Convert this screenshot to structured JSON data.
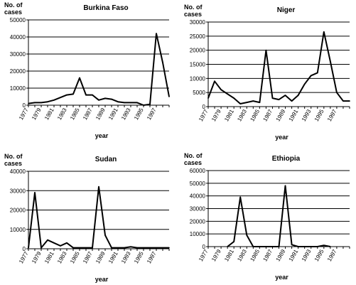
{
  "chart_data": [
    {
      "type": "line",
      "title": "Burkina Faso",
      "ylabel": "No. of cases",
      "xlabel": "year",
      "ylim": [
        0,
        50000
      ],
      "yticks": [
        0,
        10000,
        20000,
        30000,
        40000,
        50000
      ],
      "ytick_labels": [
        "0",
        "10000",
        "20000",
        "30000",
        "40000",
        "50000"
      ],
      "xlim": [
        1977,
        1999
      ],
      "xtick_labels": [
        "1977",
        "1979",
        "1981",
        "1983",
        "1985",
        "1987",
        "1989",
        "1991",
        "1993",
        "1995",
        "1997"
      ],
      "x": [
        1977,
        1978,
        1979,
        1980,
        1981,
        1982,
        1983,
        1984,
        1985,
        1986,
        1987,
        1988,
        1989,
        1990,
        1991,
        1992,
        1993,
        1994,
        1995,
        1996,
        1997,
        1998,
        1999
      ],
      "values": [
        1000,
        1500,
        1500,
        2000,
        3000,
        4500,
        6000,
        6500,
        16000,
        6000,
        6000,
        3000,
        4000,
        3500,
        2000,
        1500,
        1500,
        1500,
        0,
        500,
        42000,
        25000,
        5000
      ],
      "grid": true
    },
    {
      "type": "line",
      "title": "Niger",
      "ylabel": "No. of cases",
      "xlabel": "year",
      "ylim": [
        0,
        30000
      ],
      "yticks": [
        0,
        5000,
        10000,
        15000,
        20000,
        25000,
        30000
      ],
      "ytick_labels": [
        "0",
        "5000",
        "10000",
        "15000",
        "20000",
        "25000",
        "30000"
      ],
      "xlim": [
        1977,
        1999
      ],
      "xtick_labels": [
        "1977",
        "1979",
        "1981",
        "1983",
        "1985",
        "1987",
        "1989",
        "1991",
        "1993",
        "1995",
        "1997"
      ],
      "x": [
        1977,
        1978,
        1979,
        1980,
        1981,
        1982,
        1983,
        1984,
        1985,
        1986,
        1987,
        1988,
        1989,
        1990,
        1991,
        1992,
        1993,
        1994,
        1995,
        1996,
        1997,
        1998,
        1999
      ],
      "values": [
        3000,
        9000,
        6000,
        4500,
        3000,
        1000,
        1500,
        2000,
        1500,
        20000,
        3000,
        2500,
        4000,
        2000,
        4000,
        8000,
        11000,
        12000,
        26500,
        16000,
        5000,
        2000,
        2000
      ],
      "grid": true
    },
    {
      "type": "line",
      "title": "Sudan",
      "ylabel": "No. of cases",
      "xlabel": "year",
      "ylim": [
        0,
        40000
      ],
      "yticks": [
        0,
        10000,
        20000,
        30000,
        40000
      ],
      "ytick_labels": [
        "0",
        "10000",
        "20000",
        "30000",
        "40000"
      ],
      "xlim": [
        1977,
        1999
      ],
      "xtick_labels": [
        "1977",
        "1979",
        "1981",
        "1983",
        "1985",
        "1987",
        "1989",
        "1991",
        "1993",
        "1995",
        "1997"
      ],
      "x": [
        1977,
        1978,
        1979,
        1980,
        1981,
        1982,
        1983,
        1984,
        1985,
        1986,
        1987,
        1988,
        1989,
        1990,
        1991,
        1992,
        1993,
        1994,
        1995,
        1996,
        1997,
        1998,
        1999
      ],
      "values": [
        500,
        29000,
        500,
        4500,
        3000,
        1500,
        3000,
        500,
        500,
        500,
        500,
        32000,
        7000,
        500,
        500,
        500,
        1000,
        500,
        500,
        500,
        500,
        500,
        500
      ],
      "grid": true
    },
    {
      "type": "line",
      "title": "Ethiopia",
      "ylabel": "No. of cases",
      "xlabel": "year",
      "ylim": [
        0,
        60000
      ],
      "yticks": [
        0,
        10000,
        20000,
        30000,
        40000,
        50000,
        60000
      ],
      "ytick_labels": [
        "0",
        "10000",
        "20000",
        "30000",
        "40000",
        "50000",
        "60000"
      ],
      "xlim": [
        1977,
        1999
      ],
      "xtick_labels": [
        "1977",
        "1979",
        "1981",
        "1983",
        "1985",
        "1987",
        "1989",
        "1991",
        "1993",
        "1995",
        "1997"
      ],
      "x": [
        1980,
        1981,
        1982,
        1983,
        1984,
        1985,
        1986,
        1987,
        1988,
        1989,
        1990,
        1991,
        1992,
        1993,
        1994,
        1995,
        1996
      ],
      "values": [
        0,
        4000,
        39000,
        9000,
        0,
        0,
        0,
        0,
        0,
        48000,
        1500,
        0,
        0,
        0,
        0,
        1000,
        0
      ],
      "grid": true
    }
  ]
}
